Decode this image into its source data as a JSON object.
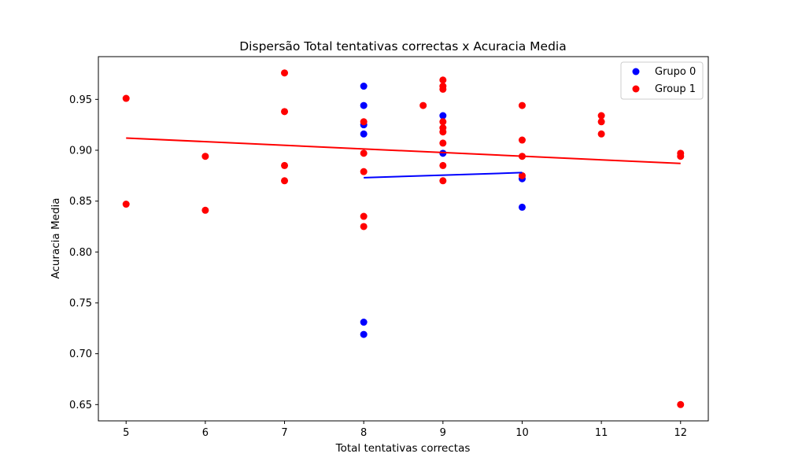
{
  "chart_data": {
    "type": "scatter",
    "title": "Dispersão Total tentativas correctas x Acuracia Media",
    "xlabel": "Total tentativas correctas",
    "ylabel": "Acuracia Media",
    "xlim": [
      4.65,
      12.35
    ],
    "ylim": [
      0.634,
      0.992
    ],
    "xticks": [
      5,
      6,
      7,
      8,
      9,
      10,
      11,
      12
    ],
    "yticks": [
      0.65,
      0.7,
      0.75,
      0.8,
      0.85,
      0.9,
      0.95
    ],
    "grid": false,
    "legend_position": "top-right",
    "series": [
      {
        "name": "Grupo 0",
        "color": "#0000ff",
        "points": [
          [
            8,
            0.963
          ],
          [
            8,
            0.944
          ],
          [
            8,
            0.925
          ],
          [
            8,
            0.916
          ],
          [
            8,
            0.731
          ],
          [
            8,
            0.719
          ],
          [
            9,
            0.934
          ],
          [
            9,
            0.897
          ],
          [
            10,
            0.872
          ],
          [
            10,
            0.844
          ]
        ],
        "trend": {
          "x": [
            8,
            10
          ],
          "y": [
            0.873,
            0.878
          ]
        }
      },
      {
        "name": "Group 1",
        "color": "#ff0000",
        "points": [
          [
            5,
            0.951
          ],
          [
            5,
            0.847
          ],
          [
            6,
            0.894
          ],
          [
            6,
            0.841
          ],
          [
            7,
            0.976
          ],
          [
            7,
            0.938
          ],
          [
            7,
            0.885
          ],
          [
            7,
            0.87
          ],
          [
            8,
            0.928
          ],
          [
            8,
            0.897
          ],
          [
            8,
            0.879
          ],
          [
            8,
            0.835
          ],
          [
            8,
            0.825
          ],
          [
            8.75,
            0.944
          ],
          [
            9,
            0.969
          ],
          [
            9,
            0.963
          ],
          [
            9,
            0.96
          ],
          [
            9,
            0.928
          ],
          [
            9,
            0.922
          ],
          [
            9,
            0.918
          ],
          [
            9,
            0.907
          ],
          [
            9,
            0.885
          ],
          [
            9,
            0.87
          ],
          [
            10,
            0.944
          ],
          [
            10,
            0.91
          ],
          [
            10,
            0.894
          ],
          [
            10,
            0.875
          ],
          [
            11,
            0.934
          ],
          [
            11,
            0.928
          ],
          [
            11,
            0.916
          ],
          [
            12,
            0.897
          ],
          [
            12,
            0.894
          ],
          [
            12,
            0.65
          ]
        ],
        "trend": {
          "x": [
            5,
            12
          ],
          "y": [
            0.912,
            0.887
          ]
        }
      }
    ]
  }
}
